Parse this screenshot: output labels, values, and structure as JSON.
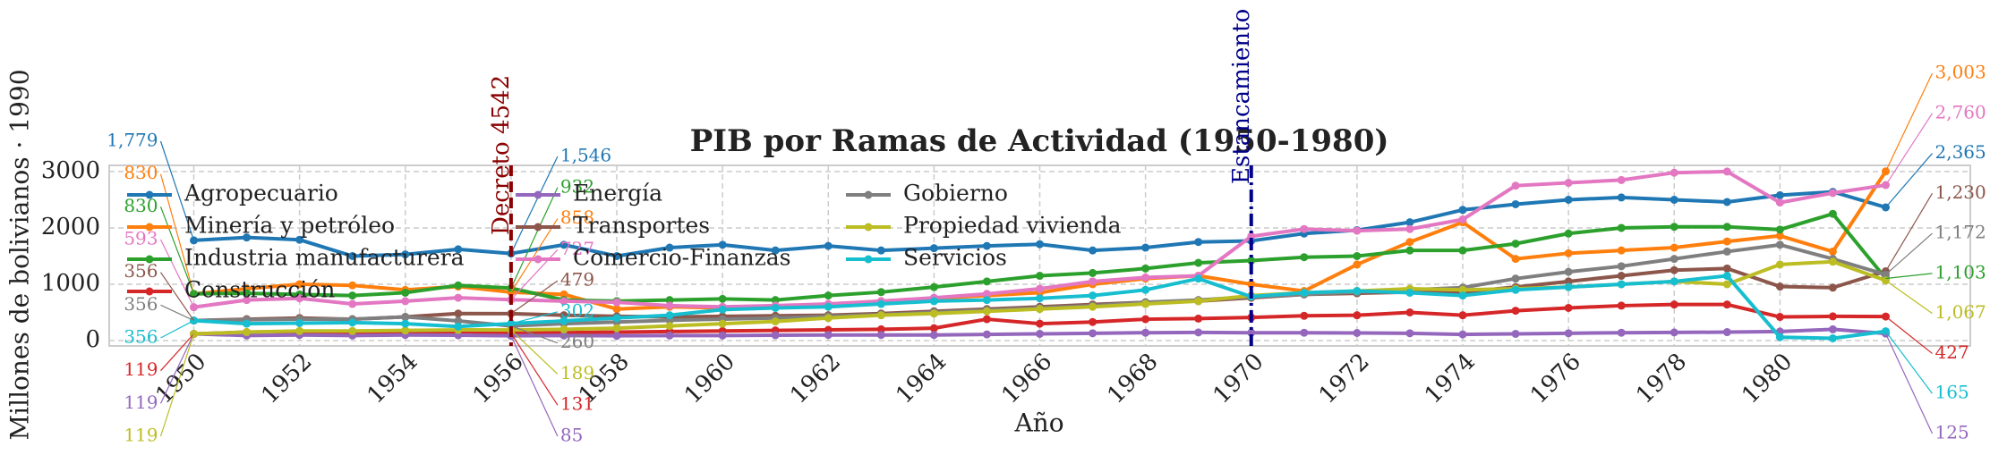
{
  "chart_data": {
    "type": "line",
    "title": "PIB por Ramas de Actividad (1950-1980)",
    "x_label": "Año",
    "y_label": "Millones de bolivianos · 1990",
    "x": [
      1950,
      1951,
      1952,
      1953,
      1954,
      1955,
      1956,
      1957,
      1958,
      1959,
      1960,
      1961,
      1962,
      1963,
      1964,
      1965,
      1966,
      1967,
      1968,
      1969,
      1970,
      1971,
      1972,
      1973,
      1974,
      1975,
      1976,
      1977,
      1978,
      1979,
      1980,
      1981,
      1982
    ],
    "xlim": [
      1948.4,
      1983.6
    ],
    "xticks": [
      1950,
      1952,
      1954,
      1956,
      1958,
      1960,
      1962,
      1964,
      1966,
      1968,
      1970,
      1972,
      1974,
      1976,
      1978,
      1980
    ],
    "ylim": [
      -95,
      3110
    ],
    "yticks": [
      0,
      1000,
      2000,
      3000
    ],
    "grid": true,
    "legend": "upper left",
    "series": [
      {
        "name": "Agropecuario",
        "color": "#1f77b4",
        "values": [
          1779,
          1830,
          1790,
          1500,
          1530,
          1620,
          1546,
          1700,
          1500,
          1650,
          1700,
          1600,
          1680,
          1600,
          1640,
          1680,
          1710,
          1600,
          1650,
          1750,
          1770,
          1900,
          1960,
          2100,
          2320,
          2420,
          2500,
          2540,
          2500,
          2460,
          2580,
          2640,
          2365
        ],
        "value_labels": [
          "1,779",
          null,
          null,
          null,
          null,
          null,
          "1,546",
          null,
          null,
          null,
          null,
          null,
          null,
          null,
          null,
          null,
          null,
          null,
          null,
          null,
          null,
          null,
          null,
          null,
          null,
          null,
          null,
          null,
          null,
          null,
          null,
          null,
          "2,365"
        ]
      },
      {
        "name": "Minería y petróleo",
        "color": "#ff7f0e",
        "values": [
          830,
          920,
          1000,
          980,
          900,
          960,
          858,
          820,
          560,
          600,
          580,
          600,
          640,
          700,
          750,
          800,
          850,
          1000,
          1100,
          1150,
          1000,
          880,
          1350,
          1750,
          2100,
          1450,
          1550,
          1600,
          1650,
          1760,
          1860,
          1580,
          3003
        ],
        "value_labels": [
          "830",
          null,
          null,
          null,
          null,
          null,
          "858",
          null,
          null,
          null,
          null,
          null,
          null,
          null,
          null,
          null,
          null,
          null,
          null,
          null,
          null,
          null,
          null,
          null,
          null,
          null,
          null,
          null,
          null,
          null,
          null,
          null,
          "3,003"
        ]
      },
      {
        "name": "Industria manufacturera",
        "color": "#2ca02c",
        "values": [
          830,
          840,
          820,
          800,
          850,
          980,
          932,
          720,
          700,
          720,
          740,
          720,
          800,
          860,
          950,
          1050,
          1150,
          1200,
          1280,
          1380,
          1420,
          1480,
          1500,
          1600,
          1600,
          1720,
          1900,
          2000,
          2020,
          2020,
          1970,
          2250,
          1103
        ],
        "value_labels": [
          "830",
          null,
          null,
          null,
          null,
          null,
          "932",
          null,
          null,
          null,
          null,
          null,
          null,
          null,
          null,
          null,
          null,
          null,
          null,
          null,
          null,
          null,
          null,
          null,
          null,
          null,
          null,
          null,
          null,
          null,
          null,
          null,
          "1,103"
        ]
      },
      {
        "name": "Construcción",
        "color": "#d62728",
        "values": [
          119,
          150,
          160,
          140,
          150,
          160,
          131,
          140,
          150,
          160,
          170,
          180,
          190,
          200,
          220,
          380,
          300,
          330,
          380,
          390,
          410,
          440,
          450,
          500,
          450,
          530,
          580,
          620,
          640,
          640,
          420,
          430,
          427
        ],
        "value_labels": [
          "119",
          null,
          null,
          null,
          null,
          null,
          "131",
          null,
          null,
          null,
          null,
          null,
          null,
          null,
          null,
          null,
          null,
          null,
          null,
          null,
          null,
          null,
          null,
          null,
          null,
          null,
          null,
          null,
          null,
          null,
          null,
          null,
          "427"
        ]
      },
      {
        "name": "Energía",
        "color": "#9467bd",
        "values": [
          119,
          90,
          100,
          90,
          100,
          95,
          85,
          90,
          85,
          90,
          90,
          95,
          100,
          100,
          100,
          110,
          120,
          130,
          140,
          145,
          140,
          140,
          135,
          130,
          110,
          120,
          130,
          140,
          145,
          150,
          160,
          200,
          125
        ],
        "value_labels": [
          "119",
          null,
          null,
          null,
          null,
          null,
          "85",
          null,
          null,
          null,
          null,
          null,
          null,
          null,
          null,
          null,
          null,
          null,
          null,
          null,
          null,
          null,
          null,
          null,
          null,
          null,
          null,
          null,
          null,
          null,
          null,
          null,
          "125"
        ]
      },
      {
        "name": "Transportes",
        "color": "#8c564b",
        "values": [
          356,
          380,
          400,
          380,
          420,
          480,
          479,
          450,
          430,
          420,
          430,
          440,
          450,
          480,
          520,
          560,
          600,
          640,
          680,
          700,
          760,
          820,
          840,
          860,
          860,
          950,
          1050,
          1150,
          1250,
          1280,
          960,
          940,
          1230
        ],
        "value_labels": [
          "356",
          null,
          null,
          null,
          null,
          null,
          "479",
          null,
          null,
          null,
          null,
          null,
          null,
          null,
          null,
          null,
          null,
          null,
          null,
          null,
          null,
          null,
          null,
          null,
          null,
          null,
          null,
          null,
          null,
          null,
          null,
          null,
          "1,230"
        ]
      },
      {
        "name": "Comercio-Finanzas",
        "color": "#e377c2",
        "values": [
          593,
          720,
          750,
          650,
          700,
          760,
          727,
          700,
          680,
          620,
          600,
          620,
          650,
          700,
          760,
          830,
          920,
          1050,
          1120,
          1150,
          1850,
          1980,
          1950,
          1980,
          2150,
          2750,
          2800,
          2850,
          2980,
          3000,
          2450,
          2620,
          2760
        ],
        "value_labels": [
          "593",
          null,
          null,
          null,
          null,
          null,
          "727",
          null,
          null,
          null,
          null,
          null,
          null,
          null,
          null,
          null,
          null,
          null,
          null,
          null,
          null,
          null,
          null,
          null,
          null,
          null,
          null,
          null,
          null,
          null,
          null,
          null,
          "2,760"
        ]
      },
      {
        "name": "Gobierno",
        "color": "#7f7f7f",
        "values": [
          356,
          370,
          380,
          380,
          420,
          350,
          260,
          300,
          330,
          360,
          380,
          400,
          430,
          460,
          500,
          540,
          580,
          620,
          680,
          720,
          780,
          820,
          860,
          900,
          940,
          1100,
          1220,
          1320,
          1450,
          1580,
          1700,
          1450,
          1172
        ],
        "value_labels": [
          "356",
          null,
          null,
          null,
          null,
          null,
          "260",
          null,
          null,
          null,
          null,
          null,
          null,
          null,
          null,
          null,
          null,
          null,
          null,
          null,
          null,
          null,
          null,
          null,
          null,
          null,
          null,
          null,
          null,
          null,
          null,
          null,
          "1,172"
        ]
      },
      {
        "name": "Propiedad vivienda",
        "color": "#bcbd22",
        "values": [
          119,
          150,
          170,
          170,
          180,
          190,
          189,
          200,
          220,
          260,
          300,
          340,
          400,
          450,
          480,
          520,
          560,
          600,
          650,
          700,
          800,
          850,
          880,
          920,
          900,
          920,
          950,
          1000,
          1050,
          1000,
          1350,
          1400,
          1067
        ],
        "value_labels": [
          "119",
          null,
          null,
          null,
          null,
          null,
          "189",
          null,
          null,
          null,
          null,
          null,
          null,
          null,
          null,
          null,
          null,
          null,
          null,
          null,
          null,
          null,
          null,
          null,
          null,
          null,
          null,
          null,
          null,
          null,
          null,
          null,
          "1,067"
        ]
      },
      {
        "name": "Servicios",
        "color": "#17becf",
        "values": [
          356,
          300,
          310,
          320,
          300,
          250,
          302,
          350,
          400,
          450,
          550,
          580,
          600,
          650,
          700,
          720,
          750,
          800,
          900,
          1100,
          780,
          850,
          880,
          850,
          800,
          900,
          950,
          1000,
          1050,
          1150,
          60,
          40,
          165
        ],
        "value_labels": [
          "356",
          null,
          null,
          null,
          null,
          null,
          "302",
          null,
          null,
          null,
          null,
          null,
          null,
          null,
          null,
          null,
          null,
          null,
          null,
          null,
          null,
          null,
          null,
          null,
          null,
          null,
          null,
          null,
          null,
          null,
          null,
          null,
          "165"
        ]
      }
    ],
    "vlines": [
      {
        "x": 1956,
        "label": "Decreto 4542",
        "color": "#8b0000",
        "style": "dashed"
      },
      {
        "x": 1970,
        "label": "Estancamiento",
        "color": "#00008b",
        "style": "dashdot"
      }
    ]
  }
}
